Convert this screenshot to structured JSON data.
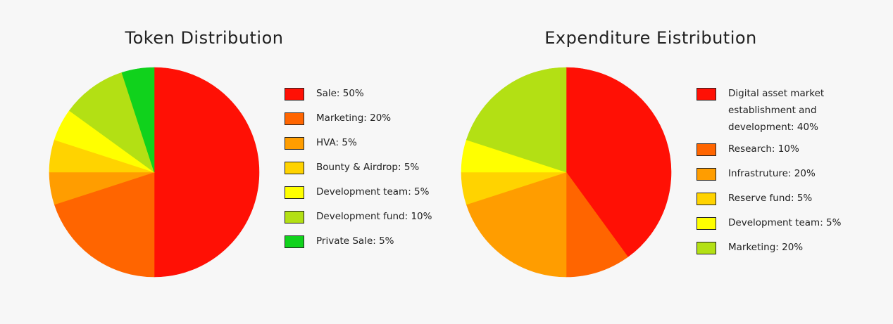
{
  "chart_data": [
    {
      "type": "pie",
      "title": "Token Distribution",
      "categories": [
        "Sale: 50%",
        "Marketing: 20%",
        "HVA: 5%",
        "Bounty & Airdrop: 5%",
        "Development team: 5%",
        "Development fund: 10%",
        "Private Sale: 5%"
      ],
      "values": [
        50,
        20,
        5,
        5,
        5,
        10,
        5
      ],
      "colors": [
        "#ff1005",
        "#ff6500",
        "#ff9d00",
        "#ffd300",
        "#ffff00",
        "#b3e014",
        "#10d21c"
      ],
      "legend_position": "right"
    },
    {
      "type": "pie",
      "title": "Expenditure Eistribution",
      "categories": [
        "Digital asset market establishment and development: 40%",
        "Research: 10%",
        "Infrastruture: 20%",
        "Reserve fund: 5%",
        "Development team: 5%",
        "Marketing: 20%"
      ],
      "values": [
        40,
        10,
        20,
        5,
        5,
        20
      ],
      "colors": [
        "#ff1005",
        "#ff6500",
        "#ff9d00",
        "#ffd300",
        "#ffff00",
        "#b3e014"
      ],
      "legend_position": "right"
    }
  ]
}
